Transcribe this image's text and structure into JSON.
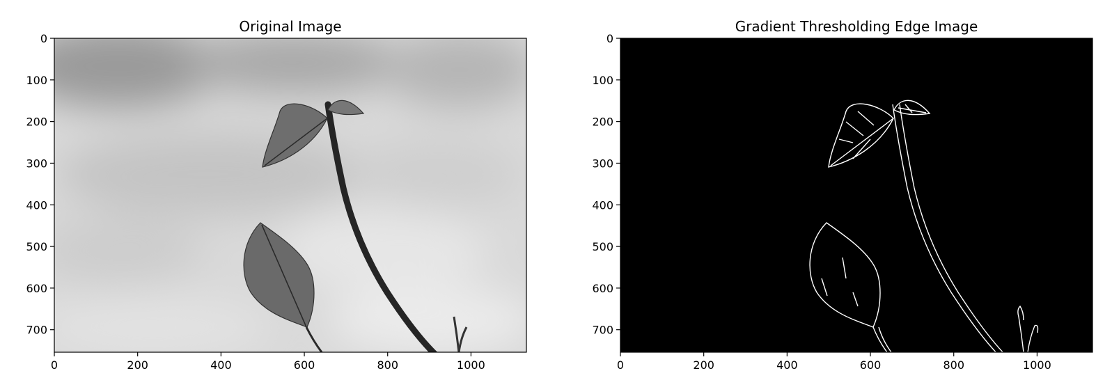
{
  "chart_data": [
    {
      "type": "image",
      "title": "Original Image",
      "image_extent": {
        "width": 1133,
        "height": 754
      },
      "xlim": [
        0,
        1133
      ],
      "ylim": [
        754,
        0
      ],
      "xticks": [
        0,
        200,
        400,
        600,
        800,
        1000
      ],
      "yticks": [
        0,
        100,
        200,
        300,
        400,
        500,
        600,
        700
      ],
      "render": "grayscale-photo"
    },
    {
      "type": "image",
      "title": "Gradient Thresholding Edge Image",
      "image_extent": {
        "width": 1133,
        "height": 754
      },
      "xlim": [
        0,
        1133
      ],
      "ylim": [
        754,
        0
      ],
      "xticks": [
        0,
        200,
        400,
        600,
        800,
        1000
      ],
      "yticks": [
        0,
        100,
        200,
        300,
        400,
        500,
        600,
        700
      ],
      "render": "binary-edges"
    }
  ]
}
